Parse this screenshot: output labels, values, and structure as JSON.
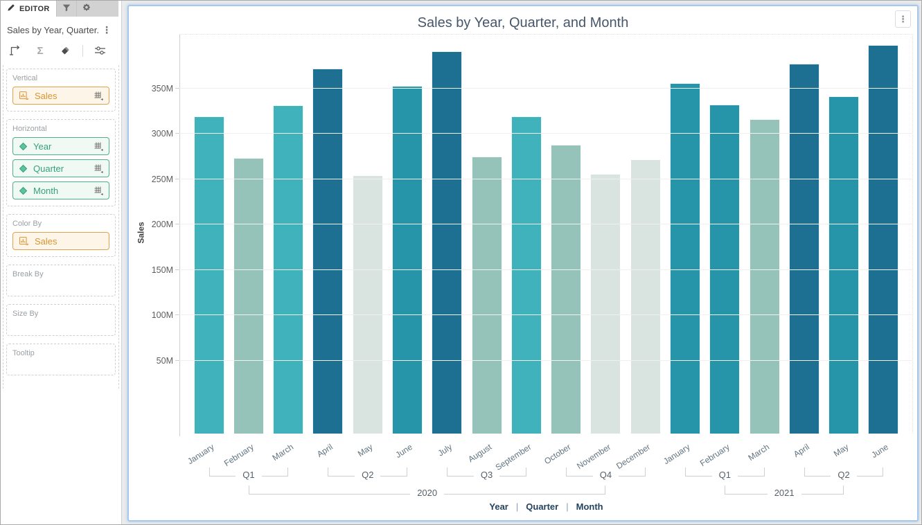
{
  "sidebar": {
    "tabs": [
      {
        "label": "EDITOR",
        "icon": "pencil",
        "active": true
      },
      {
        "label": "",
        "icon": "filter",
        "active": false
      },
      {
        "label": "",
        "icon": "gear",
        "active": false
      }
    ],
    "widget_title": "Sales by Year, Quarter...",
    "menu_icon": "kebab",
    "toolbar_icons": [
      "swap-axes",
      "sigma",
      "eraser",
      "sliders"
    ],
    "sections": [
      {
        "label": "Vertical",
        "fields": [
          {
            "label": "Sales",
            "kind": "measure",
            "icon": "bar-chart",
            "grid_button": true
          }
        ]
      },
      {
        "label": "Horizontal",
        "fields": [
          {
            "label": "Year",
            "kind": "dimension",
            "icon": "diamond",
            "grid_button": true
          },
          {
            "label": "Quarter",
            "kind": "dimension",
            "icon": "diamond",
            "grid_button": true
          },
          {
            "label": "Month",
            "kind": "dimension",
            "icon": "diamond",
            "grid_button": true
          }
        ]
      },
      {
        "label": "Color By",
        "fields": [
          {
            "label": "Sales",
            "kind": "measure",
            "icon": "bar-chart",
            "grid_button": false
          }
        ]
      },
      {
        "label": "Break By",
        "fields": []
      },
      {
        "label": "Size By",
        "fields": []
      },
      {
        "label": "Tooltip",
        "fields": []
      }
    ]
  },
  "chart": {
    "title": "Sales by Year, Quarter, and Month",
    "menu_icon": "kebab"
  },
  "colors": {
    "measure_accent": "#d9952f",
    "dimension_accent": "#35a17c",
    "widget_selection_border": "#a6c8ec",
    "bracket_line": "#cbd0d4"
  },
  "chart_data": {
    "type": "bar",
    "title": "Sales by Year, Quarter, and Month",
    "ylabel": "Sales",
    "unit": "M",
    "ylim": [
      0,
      410
    ],
    "grid": true,
    "y_ticks": [
      {
        "v": 50,
        "label": "50M"
      },
      {
        "v": 100,
        "label": "100M"
      },
      {
        "v": 150,
        "label": "150M"
      },
      {
        "v": 200,
        "label": "200M"
      },
      {
        "v": 250,
        "label": "250M"
      },
      {
        "v": 300,
        "label": "300M"
      },
      {
        "v": 350,
        "label": "350M"
      }
    ],
    "x_axis": {
      "levels": [
        "Year",
        "Quarter",
        "Month"
      ],
      "separator": "|"
    },
    "palette": {
      "lightest": "#d9e3df",
      "sage": "#95c3ba",
      "teal": "#3fb2bb",
      "medium_dark": "#2695aa",
      "dark": "#1d7092"
    },
    "series_name": "Sales",
    "points": [
      {
        "year": "2020",
        "quarter": "Q1",
        "month": "January",
        "sales_m": 319,
        "color": "#3fb2bb"
      },
      {
        "year": "2020",
        "quarter": "Q1",
        "month": "February",
        "sales_m": 273,
        "color": "#95c3ba"
      },
      {
        "year": "2020",
        "quarter": "Q1",
        "month": "March",
        "sales_m": 331,
        "color": "#3fb2bb"
      },
      {
        "year": "2020",
        "quarter": "Q2",
        "month": "April",
        "sales_m": 372,
        "color": "#1d7092"
      },
      {
        "year": "2020",
        "quarter": "Q2",
        "month": "May",
        "sales_m": 254,
        "color": "#d9e3df"
      },
      {
        "year": "2020",
        "quarter": "Q2",
        "month": "June",
        "sales_m": 353,
        "color": "#2695aa"
      },
      {
        "year": "2020",
        "quarter": "Q3",
        "month": "July",
        "sales_m": 391,
        "color": "#1d7092"
      },
      {
        "year": "2020",
        "quarter": "Q3",
        "month": "August",
        "sales_m": 275,
        "color": "#95c3ba"
      },
      {
        "year": "2020",
        "quarter": "Q3",
        "month": "September",
        "sales_m": 319,
        "color": "#3fb2bb"
      },
      {
        "year": "2020",
        "quarter": "Q4",
        "month": "October",
        "sales_m": 288,
        "color": "#95c3ba"
      },
      {
        "year": "2020",
        "quarter": "Q4",
        "month": "November",
        "sales_m": 256,
        "color": "#d9e3df"
      },
      {
        "year": "2020",
        "quarter": "Q4",
        "month": "December",
        "sales_m": 272,
        "color": "#d9e3df"
      },
      {
        "year": "2021",
        "quarter": "Q1",
        "month": "January",
        "sales_m": 356,
        "color": "#2695aa"
      },
      {
        "year": "2021",
        "quarter": "Q1",
        "month": "February",
        "sales_m": 332,
        "color": "#2695aa"
      },
      {
        "year": "2021",
        "quarter": "Q1",
        "month": "March",
        "sales_m": 316,
        "color": "#95c3ba"
      },
      {
        "year": "2021",
        "quarter": "Q2",
        "month": "April",
        "sales_m": 377,
        "color": "#1d7092"
      },
      {
        "year": "2021",
        "quarter": "Q2",
        "month": "May",
        "sales_m": 341,
        "color": "#2695aa"
      },
      {
        "year": "2021",
        "quarter": "Q2",
        "month": "June",
        "sales_m": 398,
        "color": "#1d7092"
      }
    ],
    "quarter_groups": [
      {
        "label": "Q1",
        "months": [
          0,
          2
        ]
      },
      {
        "label": "Q2",
        "months": [
          3,
          5
        ]
      },
      {
        "label": "Q3",
        "months": [
          6,
          8
        ]
      },
      {
        "label": "Q4",
        "months": [
          9,
          11
        ]
      },
      {
        "label": "Q1",
        "months": [
          12,
          14
        ]
      },
      {
        "label": "Q2",
        "months": [
          15,
          17
        ]
      }
    ],
    "year_groups": [
      {
        "label": "2020",
        "quarters": [
          0,
          3
        ]
      },
      {
        "label": "2021",
        "quarters": [
          4,
          5
        ]
      }
    ]
  }
}
